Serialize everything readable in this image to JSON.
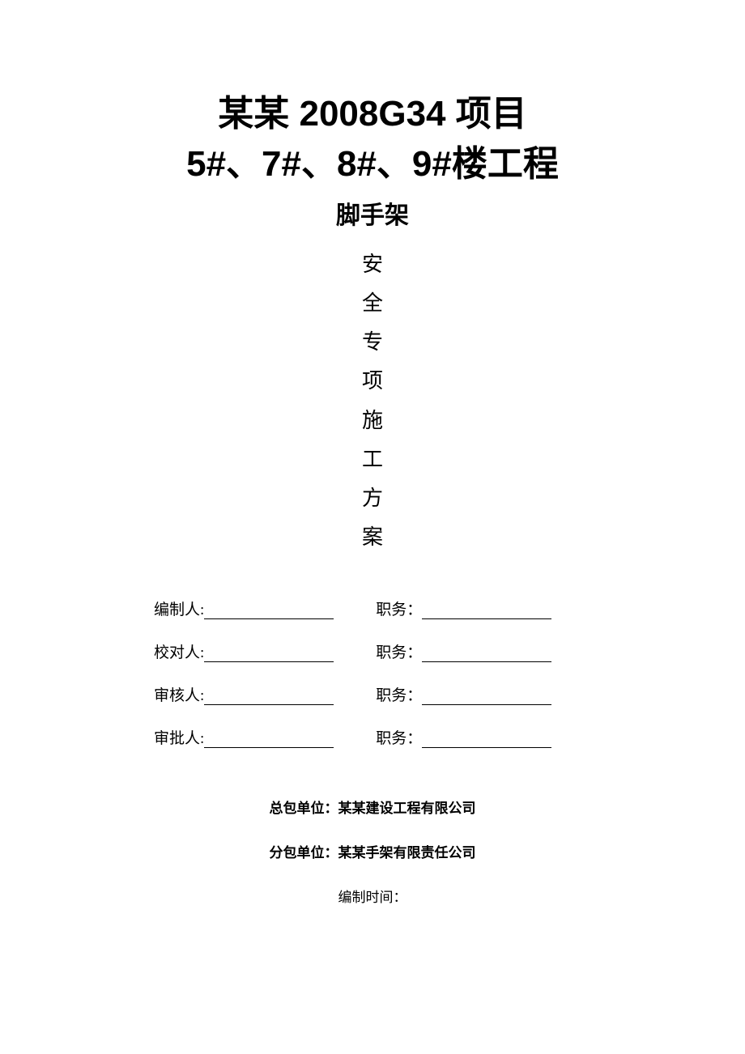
{
  "title": {
    "line1": "某某 2008G34 项目",
    "line2": "5#、7#、8#、9#楼工程",
    "subtitle": "脚手架"
  },
  "vertical": {
    "c1": "安",
    "c2": "全",
    "c3": "专",
    "c4": "项",
    "c5": "施",
    "c6": "工",
    "c7": "方",
    "c8": "案"
  },
  "signatures": {
    "row1_left": "编制人:",
    "row1_right": "职务：",
    "row2_left": "校对人:",
    "row2_right": "职务：",
    "row3_left": "审核人:",
    "row3_right": "职务：",
    "row4_left": "审批人:",
    "row4_right": "职务："
  },
  "footer": {
    "contractor": "总包单位：某某建设工程有限公司",
    "subcontractor": "分包单位：某某手架有限责任公司",
    "date_label": "编制时间："
  },
  "colors": {
    "background": "#ffffff",
    "text": "#000000"
  }
}
